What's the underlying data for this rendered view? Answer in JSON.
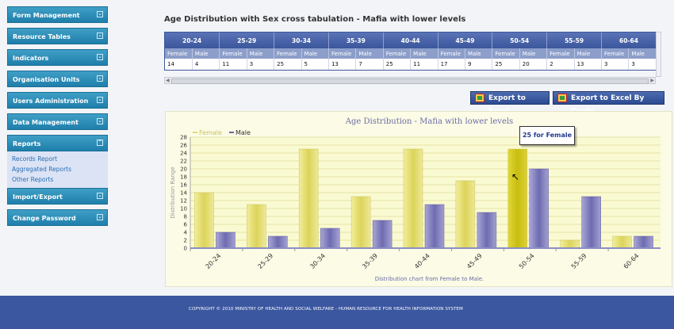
{
  "sidebar": {
    "items": [
      {
        "label": "Form Management"
      },
      {
        "label": "Resource Tables"
      },
      {
        "label": "Indicators"
      },
      {
        "label": "Organisation Units"
      },
      {
        "label": "Users Administration"
      },
      {
        "label": "Data Management"
      },
      {
        "label": "Reports"
      },
      {
        "label": "Import/Export"
      },
      {
        "label": "Change Password"
      }
    ],
    "reports_submenu": [
      "Records Report",
      "Aggregated Reports",
      "Other Reports"
    ]
  },
  "page_title": "Age Distribution with Sex cross tabulation - Mafia with lower levels",
  "table": {
    "groups": [
      "20-24",
      "25-29",
      "30-34",
      "35-39",
      "40-44",
      "45-49",
      "50-54",
      "55-59",
      "60-64"
    ],
    "sub_headers": [
      "Female",
      "Male"
    ],
    "values": [
      "14",
      "4",
      "11",
      "3",
      "25",
      "5",
      "13",
      "7",
      "25",
      "11",
      "17",
      "9",
      "25",
      "20",
      "2",
      "13",
      "3",
      "3"
    ]
  },
  "buttons": {
    "export_excel": "Export to Excel",
    "export_excel_carde": "Export to Excel By Carde"
  },
  "chart_data": {
    "type": "bar",
    "title": "Age Distribution - Mafia with lower levels",
    "xlabel": "Distribution chart from Female to Male.",
    "ylabel": "Distribution Range",
    "categories": [
      "20-24",
      "25-29",
      "30-34",
      "35-39",
      "40-44",
      "45-49",
      "50-54",
      "55-59",
      "60-64"
    ],
    "series": [
      {
        "name": "Female",
        "values": [
          14,
          11,
          25,
          13,
          25,
          17,
          25,
          2,
          3
        ],
        "color": "#e8e27a"
      },
      {
        "name": "Male",
        "values": [
          4,
          3,
          5,
          7,
          11,
          9,
          20,
          13,
          3
        ],
        "color": "#8c8ac2"
      }
    ],
    "ylim": [
      0,
      28
    ],
    "yticks": [
      0,
      2,
      4,
      6,
      8,
      10,
      12,
      14,
      16,
      18,
      20,
      22,
      24,
      26,
      28
    ],
    "legend": "top-left",
    "grid": true,
    "tooltip": "25 for Female"
  },
  "footer": "COPYRIGHT © 2010 MINISTRY OF HEALTH AND SOCIAL WELFARE - HUMAN RESOURCE FOR HEALTH INFORMATION SYSTEM"
}
